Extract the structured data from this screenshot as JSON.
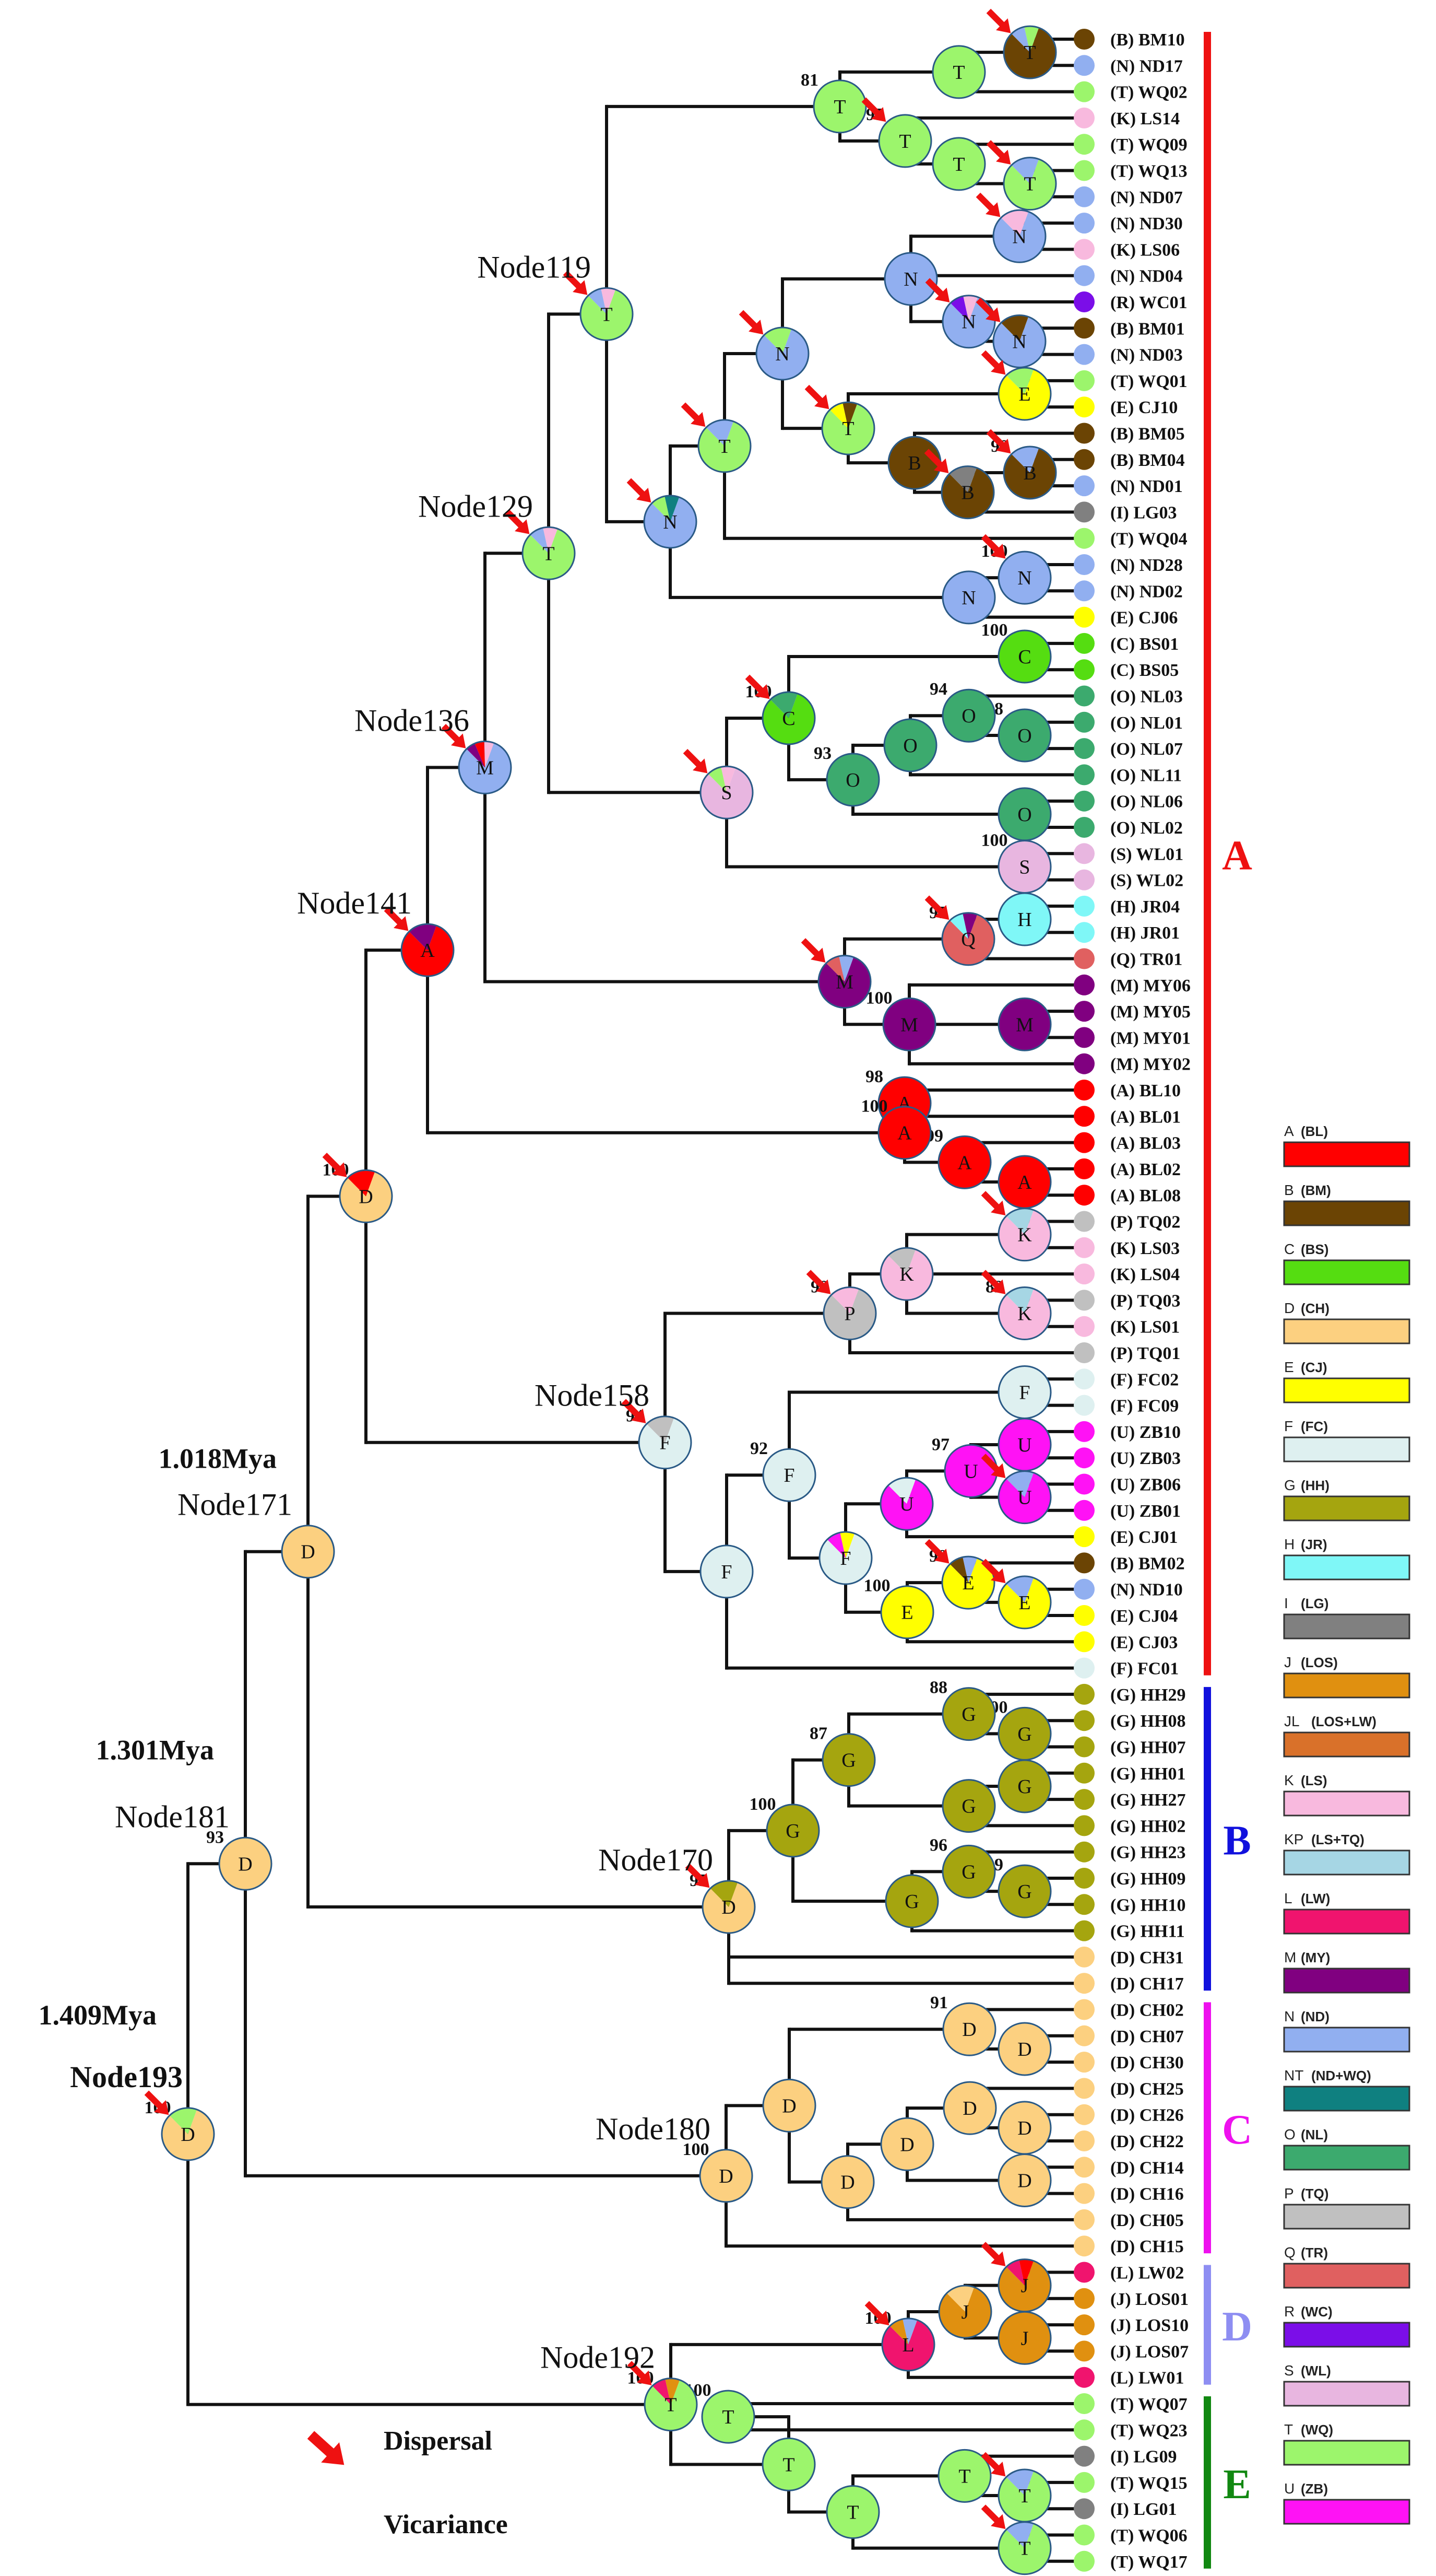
{
  "figure": {
    "legend_notes": {
      "dispersal": "Dispersal",
      "vicariance": "Vicariance"
    },
    "ages": [
      {
        "text": "1.018Mya",
        "node": "Node171"
      },
      {
        "text": "1.301Mya",
        "node": "Node181"
      },
      {
        "text": "1.409Mya",
        "node": "Node193"
      }
    ],
    "node_labels": [
      "Node119",
      "Node129",
      "Node136",
      "Node141",
      "Node158",
      "Node171",
      "Node181",
      "Node170",
      "Node180",
      "Node192",
      "Node193"
    ],
    "clades": [
      {
        "letter": "A",
        "color": "#ee1111"
      },
      {
        "letter": "B",
        "color": "#1111dd"
      },
      {
        "letter": "C",
        "color": "#ee11ee"
      },
      {
        "letter": "D",
        "color": "#8e8ef2"
      },
      {
        "letter": "E",
        "color": "#118811"
      }
    ],
    "leaves": [
      "(B) BM10",
      "(N) ND17",
      "(T) WQ02",
      "(K) LS14",
      "(T) WQ09",
      "(T) WQ13",
      "(N) ND07",
      "(N) ND30",
      "(K) LS06",
      "(N) ND04",
      "(R) WC01",
      "(B) BM01",
      "(N) ND03",
      "(T) WQ01",
      "(E) CJ10",
      "(B) BM05",
      "(B) BM04",
      "(N) ND01",
      "(I) LG03",
      "(T) WQ04",
      "(N) ND28",
      "(N) ND02",
      "(E) CJ06",
      "(C) BS01",
      "(C) BS05",
      "(O) NL03",
      "(O) NL01",
      "(O) NL07",
      "(O) NL11",
      "(O) NL06",
      "(O) NL02",
      "(S) WL01",
      "(S) WL02",
      "(H) JR04",
      "(H) JR01",
      "(Q) TR01",
      "(M) MY06",
      "(M) MY05",
      "(M) MY01",
      "(M) MY02",
      "(A) BL10",
      "(A) BL01",
      "(A) BL03",
      "(A) BL02",
      "(A) BL08",
      "(P) TQ02",
      "(K) LS03",
      "(K) LS04",
      "(P) TQ03",
      "(K) LS01",
      "(P) TQ01",
      "(F) FC02",
      "(F) FC09",
      "(U) ZB10",
      "(U) ZB03",
      "(U) ZB06",
      "(U) ZB01",
      "(E) CJ01",
      "(B) BM02",
      "(N) ND10",
      "(E) CJ04",
      "(E) CJ03",
      "(F) FC01",
      "(G) HH29",
      "(G) HH08",
      "(G) HH07",
      "(G) HH01",
      "(G) HH27",
      "(G) HH02",
      "(G) HH23",
      "(G) HH09",
      "(G) HH10",
      "(G) HH11",
      "(D) CH31",
      "(D) CH17",
      "(D) CH02",
      "(D) CH07",
      "(D) CH30",
      "(D) CH25",
      "(D) CH26",
      "(D) CH22",
      "(D) CH14",
      "(D) CH16",
      "(D) CH05",
      "(D) CH15",
      "(L) LW02",
      "(J) LOS01",
      "(J) LOS10",
      "(J) LOS07",
      "(L) LW01",
      "(T) WQ07",
      "(T) WQ23",
      "(I) LG09",
      "(T) WQ15",
      "(I) LG01",
      "(T) WQ06",
      "(T) WQ17"
    ],
    "areas": [
      {
        "code": "A",
        "name": "(BL)",
        "color": "#ff0000"
      },
      {
        "code": "B",
        "name": "(BM)",
        "color": "#6b4404"
      },
      {
        "code": "C",
        "name": "(BS)",
        "color": "#55dd11"
      },
      {
        "code": "D",
        "name": "(CH)",
        "color": "#fcd080"
      },
      {
        "code": "E",
        "name": "(CJ)",
        "color": "#ffff00"
      },
      {
        "code": "F",
        "name": "(FC)",
        "color": "#def0f0"
      },
      {
        "code": "G",
        "name": "(HH)",
        "color": "#a5a50f"
      },
      {
        "code": "H",
        "name": "(JR)",
        "color": "#7ff7f7"
      },
      {
        "code": "I",
        "name": "(LG)",
        "color": "#808080"
      },
      {
        "code": "J",
        "name": "(LOS)",
        "color": "#e09010"
      },
      {
        "code": "JL",
        "name": "(LOS+LW)",
        "color": "#d9712a"
      },
      {
        "code": "K",
        "name": "(LS)",
        "color": "#f8b9de"
      },
      {
        "code": "KP",
        "name": "(LS+TQ)",
        "color": "#a6d6e4"
      },
      {
        "code": "L",
        "name": "(LW)",
        "color": "#f0146e"
      },
      {
        "code": "M",
        "name": "(MY)",
        "color": "#800080"
      },
      {
        "code": "N",
        "name": "(ND)",
        "color": "#91aff0"
      },
      {
        "code": "NT",
        "name": "(ND+WQ)",
        "color": "#0f8080"
      },
      {
        "code": "O",
        "name": "(NL)",
        "color": "#3caa6e"
      },
      {
        "code": "P",
        "name": "(TQ)",
        "color": "#c0c0c0"
      },
      {
        "code": "Q",
        "name": "(TR)",
        "color": "#e06060"
      },
      {
        "code": "R",
        "name": "(WC)",
        "color": "#7b0ee8"
      },
      {
        "code": "S",
        "name": "(WL)",
        "color": "#e8b6e0"
      },
      {
        "code": "T",
        "name": "(WQ)",
        "color": "#9cf56c"
      },
      {
        "code": "U",
        "name": "(ZB)",
        "color": "#ff12f5"
      }
    ],
    "nodes": [
      {
        "k": "a1",
        "p": "a2",
        "l": "T",
        "c": [
          "B",
          "N",
          "T"
        ],
        "s": "97"
      },
      {
        "k": "a2",
        "p": "a4",
        "l": "T",
        "c": [
          "T",
          "N"
        ]
      },
      {
        "k": "a3",
        "p": "a4",
        "l": "T",
        "c": [
          "T"
        ],
        "s": "97"
      },
      {
        "k": "a4",
        "p": "a13",
        "l": "T",
        "c": [
          "T"
        ],
        "s": "81"
      },
      {
        "k": "a5",
        "p": "a3",
        "l": "T",
        "c": [
          "T"
        ]
      },
      {
        "k": "a6",
        "p": "a5",
        "l": "T",
        "c": [
          "T",
          "N"
        ]
      },
      {
        "k": "a7",
        "p": "a8",
        "l": "N",
        "c": [
          "N",
          "K"
        ]
      },
      {
        "k": "a8",
        "p": "a12",
        "l": "N",
        "c": [
          "N"
        ]
      },
      {
        "k": "a9",
        "p": "a8",
        "l": "N",
        "c": [
          "N",
          "R",
          "K"
        ]
      },
      {
        "k": "a10",
        "p": "a9",
        "l": "N",
        "c": [
          "N",
          "B"
        ]
      },
      {
        "k": "a11",
        "p": "a14",
        "l": "E",
        "c": [
          "E",
          "T"
        ]
      },
      {
        "k": "a12",
        "p": "a15",
        "l": "N",
        "c": [
          "N",
          "T"
        ]
      },
      {
        "k": "a13",
        "p": "a18",
        "l": "T",
        "c": [
          "T",
          "K",
          "N"
        ]
      },
      {
        "k": "a14",
        "p": "a12",
        "l": "T",
        "c": [
          "T",
          "E",
          "B"
        ]
      },
      {
        "k": "a15",
        "p": "a16",
        "l": "T",
        "c": [
          "T",
          "N"
        ]
      },
      {
        "k": "a16",
        "p": "a13",
        "l": "N",
        "c": [
          "N",
          "T",
          "NT"
        ]
      },
      {
        "k": "a17",
        "p": "a14",
        "l": "B",
        "c": [
          "B",
          "N"
        ]
      },
      {
        "k": "a18",
        "p": "a25",
        "l": "T",
        "c": [
          "T",
          "N",
          "K"
        ]
      },
      {
        "k": "a19",
        "p": "a17",
        "l": "B",
        "c": [
          "B",
          "I"
        ]
      },
      {
        "k": "a20",
        "p": "a19",
        "l": "B",
        "c": [
          "B",
          "N"
        ],
        "s": "90"
      },
      {
        "k": "a21",
        "p": "a22",
        "l": "N",
        "c": [
          "N"
        ],
        "s": "100"
      },
      {
        "k": "a22",
        "p": "a16",
        "l": "N",
        "c": [
          "N"
        ]
      },
      {
        "k": "a23",
        "p": "a27",
        "l": "C",
        "c": [
          "C"
        ],
        "s": "100"
      },
      {
        "k": "a24",
        "p": "a32",
        "l": "S",
        "c": [
          "S",
          "T",
          "K"
        ]
      },
      {
        "k": "a25",
        "p": "a26",
        "l": "T",
        "c": [
          "T",
          "N",
          "K"
        ]
      },
      {
        "k": "a26",
        "p": "a36",
        "l": "M",
        "c": [
          "N",
          "M",
          "A",
          "K"
        ]
      },
      {
        "k": "a27",
        "p": "a24",
        "l": "C",
        "c": [
          "C",
          "O"
        ],
        "s": "100"
      },
      {
        "k": "a28",
        "p": "a27",
        "l": "O",
        "c": [
          "O"
        ],
        "s": "93"
      },
      {
        "k": "a29",
        "p": "a28",
        "l": "O",
        "c": [
          "O"
        ]
      },
      {
        "k": "a30",
        "p": "a29",
        "l": "O",
        "c": [
          "O"
        ],
        "s": "94"
      },
      {
        "k": "a31",
        "p": "a30",
        "l": "O",
        "c": [
          "O"
        ],
        "s": "98"
      },
      {
        "k": "a32",
        "p": "a25",
        "l": "S",
        "c": [
          "S"
        ]
      },
      {
        "k": "a33",
        "p": "a28",
        "l": "O",
        "c": [
          "O"
        ]
      },
      {
        "k": "a34",
        "p": "a24",
        "l": "S",
        "c": [
          "S"
        ],
        "s": "100"
      },
      {
        "k": "a35",
        "p": "a37",
        "l": "Q",
        "c": [
          "Q",
          "H",
          "M"
        ],
        "s": "97"
      },
      {
        "k": "a36",
        "p": "a41",
        "l": "A",
        "c": [
          "A",
          "M"
        ]
      },
      {
        "k": "a37",
        "p": "a26",
        "l": "M",
        "c": [
          "M",
          "Q",
          "N"
        ]
      },
      {
        "k": "a38",
        "p": "a37",
        "l": "M",
        "c": [
          "M"
        ],
        "s": "100"
      },
      {
        "k": "a39",
        "p": "a38",
        "l": "M",
        "c": [
          "M"
        ]
      },
      {
        "k": "a40",
        "p": "a39",
        "l": "M",
        "c": [
          "M"
        ]
      },
      {
        "k": "a41",
        "p": "a48",
        "l": "D",
        "c": [
          "D",
          "A"
        ],
        "s": "100"
      },
      {
        "k": "a42",
        "p": "a36",
        "l": "A",
        "c": [
          "A"
        ],
        "s": "100"
      },
      {
        "k": "a43",
        "p": "a42",
        "l": "A",
        "c": [
          "A"
        ],
        "s": "99"
      },
      {
        "k": "a44",
        "p": "a43",
        "l": "A",
        "c": [
          "A"
        ],
        "s": "98"
      },
      {
        "k": "a45",
        "p": "a43",
        "l": "A",
        "c": [
          "A"
        ]
      },
      {
        "k": "a46",
        "p": "a47",
        "l": "P",
        "c": [
          "P",
          "K"
        ],
        "s": "99"
      },
      {
        "k": "a47",
        "p": "a41",
        "l": "F",
        "c": [
          "F",
          "P"
        ],
        "s": "94"
      },
      {
        "k": "a48",
        "p": "a58",
        "l": "D",
        "c": [
          "D"
        ]
      },
      {
        "k": "a49",
        "p": "a46",
        "l": "K",
        "c": [
          "K"
        ]
      },
      {
        "k": "a50",
        "p": "a49",
        "l": "K",
        "c": [
          "K",
          "P"
        ]
      },
      {
        "k": "a51",
        "p": "a49",
        "l": "K",
        "c": [
          "K",
          "KP"
        ],
        "s": "82"
      },
      {
        "k": "a52",
        "p": "a47",
        "l": "F",
        "c": [
          "F"
        ],
        "s": "92"
      },
      {
        "k": "a53",
        "p": "a54",
        "l": "F",
        "c": [
          "F"
        ]
      },
      {
        "k": "a54",
        "p": "a52",
        "l": "F",
        "c": [
          "F"
        ]
      },
      {
        "k": "a55",
        "p": "a56",
        "l": "U",
        "c": [
          "U",
          "F"
        ]
      },
      {
        "k": "a56",
        "p": "a52",
        "l": "F",
        "c": [
          "F",
          "U",
          "E"
        ]
      },
      {
        "k": "a57",
        "p": "a55",
        "l": "U",
        "c": [
          "U"
        ],
        "s": "97"
      },
      {
        "k": "a58",
        "p": "a62",
        "l": "D",
        "c": [
          "D"
        ]
      },
      {
        "k": "a59",
        "p": "a57",
        "l": "U",
        "c": [
          "U"
        ]
      },
      {
        "k": "a60",
        "p": "a57",
        "l": "U",
        "c": [
          "U",
          "N"
        ]
      },
      {
        "k": "a61",
        "p": "a56",
        "l": "E",
        "c": [
          "E"
        ],
        "s": "100"
      },
      {
        "k": "a62",
        "p": "a63",
        "l": "D",
        "c": [
          "D"
        ],
        "s": "93"
      },
      {
        "k": "a63",
        "p": null,
        "l": "D",
        "c": [
          "D",
          "T"
        ],
        "s": "100"
      },
      {
        "k": "a64",
        "p": "a61",
        "l": "E",
        "c": [
          "E",
          "B",
          "N"
        ],
        "s": "98"
      },
      {
        "k": "a65",
        "p": "a64",
        "l": "E",
        "c": [
          "E",
          "N"
        ]
      },
      {
        "k": "a66",
        "p": "a70",
        "l": "G",
        "c": [
          "G"
        ],
        "s": "88"
      },
      {
        "k": "a67",
        "p": "a66",
        "l": "G",
        "c": [
          "G"
        ],
        "s": "100"
      },
      {
        "k": "a68",
        "p": "a70",
        "l": "G",
        "c": [
          "G"
        ],
        "s": "87"
      },
      {
        "k": "a69",
        "p": "a72",
        "l": "G",
        "c": [
          "G"
        ]
      },
      {
        "k": "a70",
        "p": "a74",
        "l": "G",
        "c": [
          "G"
        ],
        "s": "100"
      },
      {
        "k": "a71",
        "p": "a69",
        "l": "G",
        "c": [
          "G"
        ]
      },
      {
        "k": "a72",
        "p": "a70",
        "l": "G",
        "c": [
          "G"
        ]
      },
      {
        "k": "a73",
        "p": "a72",
        "l": "G",
        "c": [
          "G"
        ],
        "s": "96"
      },
      {
        "k": "a74",
        "p": "a48",
        "l": "D",
        "c": [
          "D",
          "G"
        ],
        "s": "95"
      },
      {
        "k": "a75",
        "p": "a73",
        "l": "G",
        "c": [
          "G"
        ],
        "s": "99"
      },
      {
        "k": "a76",
        "p": "a74",
        "l": "D",
        "c": [
          "D"
        ],
        "s": "100"
      },
      {
        "k": "a77",
        "p": "a79",
        "l": "D",
        "c": [
          "D"
        ]
      },
      {
        "k": "a78",
        "p": "a81",
        "l": "D",
        "c": [
          "D"
        ],
        "s": "91"
      },
      {
        "k": "a79",
        "p": "a80",
        "l": "D",
        "c": [
          "D"
        ]
      },
      {
        "k": "a80",
        "p": "a62",
        "l": "D",
        "c": [
          "D"
        ],
        "s": "100"
      },
      {
        "k": "a81",
        "p": "a77",
        "l": "D",
        "c": [
          "D"
        ]
      },
      {
        "k": "a82",
        "p": "a81",
        "l": "D",
        "c": [
          "D"
        ]
      },
      {
        "k": "a83",
        "p": "a85",
        "l": "D",
        "c": [
          "D"
        ]
      },
      {
        "k": "a84",
        "p": "a77",
        "l": "D",
        "c": [
          "D"
        ]
      },
      {
        "k": "a85",
        "p": "a84",
        "l": "D",
        "c": [
          "D"
        ]
      },
      {
        "k": "a86",
        "p": "a88",
        "l": "J",
        "c": [
          "J",
          "L",
          "A"
        ]
      },
      {
        "k": "a87",
        "p": "a89",
        "l": "J",
        "c": [
          "J",
          "D"
        ]
      },
      {
        "k": "a88",
        "p": "a89",
        "l": "J",
        "c": [
          "J"
        ]
      },
      {
        "k": "a89",
        "p": "a90",
        "l": "L",
        "c": [
          "L",
          "J",
          "N"
        ],
        "s": "100"
      },
      {
        "k": "a90",
        "p": "a63",
        "l": "T",
        "c": [
          "T",
          "L",
          "J"
        ],
        "s": "100"
      },
      {
        "k": "a91",
        "p": "a90",
        "l": "T",
        "c": [
          "T"
        ],
        "s": "100"
      },
      {
        "k": "a92",
        "p": "a91",
        "l": "T",
        "c": [
          "T"
        ]
      },
      {
        "k": "a93",
        "p": "a94",
        "l": "T",
        "c": [
          "T",
          "N"
        ]
      },
      {
        "k": "a94",
        "p": "a92",
        "l": "T",
        "c": [
          "T"
        ]
      },
      {
        "k": "a95",
        "p": "a96",
        "l": "T",
        "c": [
          "T",
          "N"
        ]
      },
      {
        "k": "a96",
        "p": "a94",
        "l": "T",
        "c": [
          "T"
        ]
      },
      {
        "k": "a97",
        "p": "a92",
        "l": "T",
        "c": [
          "T"
        ]
      }
    ]
  }
}
